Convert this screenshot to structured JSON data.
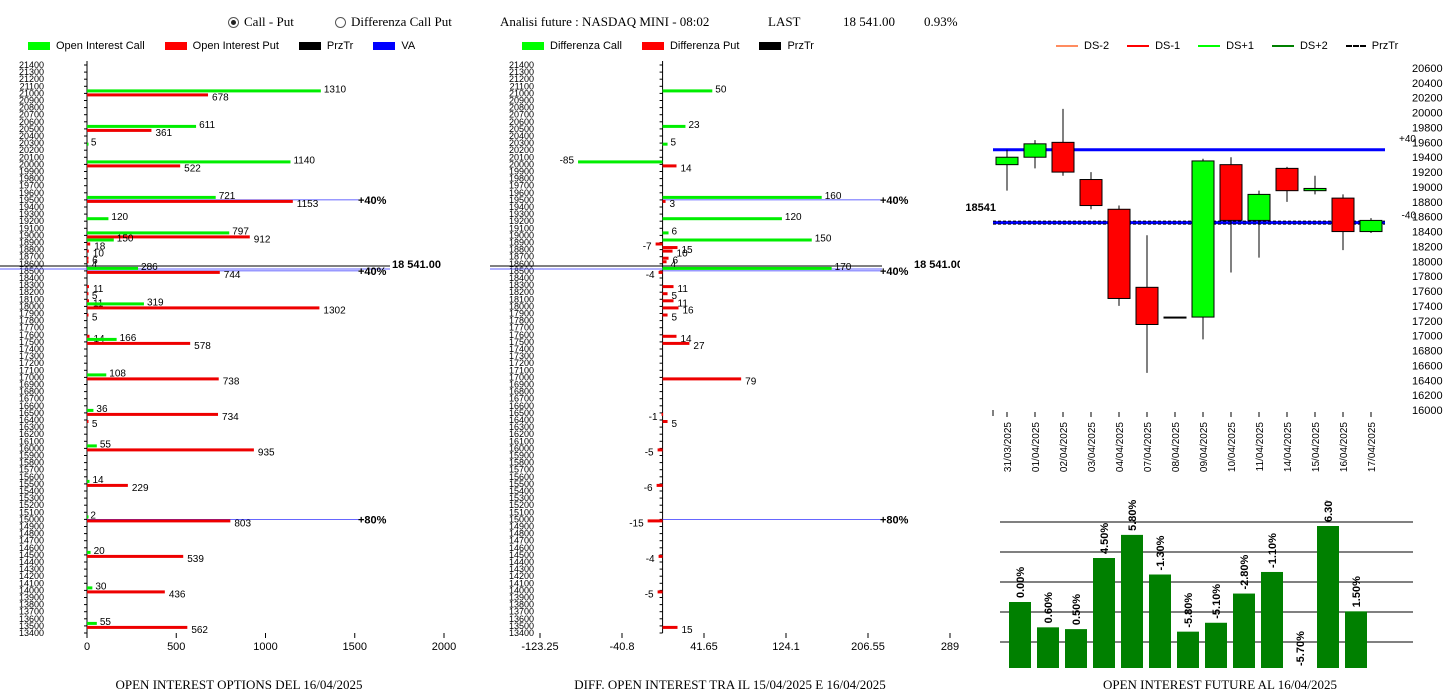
{
  "header": {
    "mode_options": [
      "Call - Put",
      "Differenza Call Put"
    ],
    "mode_selected": 0,
    "title": "Analisi future : NASDAQ MINI - 08:02",
    "last_label": "LAST",
    "last_value": "18 541.00",
    "change": "0.93%"
  },
  "legend1": [
    {
      "label": "Open Interest Call",
      "color": "#00ff00"
    },
    {
      "label": "Open Interest Put",
      "color": "#ff0000"
    },
    {
      "label": "PrzTr",
      "color": "#000000"
    },
    {
      "label": "VA",
      "color": "#0000ff"
    }
  ],
  "legend2": [
    {
      "label": "Differenza Call",
      "color": "#00ff00"
    },
    {
      "label": "Differenza Put",
      "color": "#ff0000"
    },
    {
      "label": "PrzTr",
      "color": "#000000"
    }
  ],
  "legend3": [
    {
      "label": "DS-2",
      "color": "#ff8c60",
      "style": "solid"
    },
    {
      "label": "DS-1",
      "color": "#ff0000",
      "style": "solid"
    },
    {
      "label": "DS+1",
      "color": "#00ff00",
      "style": "solid"
    },
    {
      "label": "DS+2",
      "color": "#008000",
      "style": "solid"
    },
    {
      "label": "PrzTr",
      "color": "#000000",
      "style": "dashed"
    }
  ],
  "captions": {
    "chart1": "OPEN INTEREST OPTIONS DEL 16/04/2025",
    "chart2": "DIFF. OPEN INTEREST TRA IL 15/04/2025 E 16/04/2025",
    "chart3": "OPEN INTEREST FUTURE AL 16/04/2025"
  },
  "chart_data": [
    {
      "type": "bar",
      "orientation": "horizontal",
      "y_range": [
        13400,
        21400
      ],
      "y_step": 100,
      "x_ticks": [
        "0",
        "500",
        "1000",
        "1500",
        "2000"
      ],
      "xlim": [
        0,
        2000
      ],
      "series": [
        {
          "name": "Open Interest Call",
          "color": "#00ff00"
        },
        {
          "name": "Open Interest Put",
          "color": "#ff0000"
        }
      ],
      "rows": [
        {
          "strike": 21000,
          "call": 1310,
          "put": 678,
          "call_label": "1310",
          "put_label": "678"
        },
        {
          "strike": 20500,
          "call": 611,
          "put": 361,
          "call_label": "611",
          "put_label": "361"
        },
        {
          "strike": 20250,
          "call": 5,
          "call_label": "5"
        },
        {
          "strike": 20000,
          "call": 1140,
          "put": 522,
          "call_label": "1140",
          "put_label": "522"
        },
        {
          "strike": 19500,
          "call": 721,
          "put": 1153,
          "call_label": "721",
          "put_label": "1153"
        },
        {
          "strike": 19200,
          "call": 120,
          "call_label": "120"
        },
        {
          "strike": 19000,
          "call": 797,
          "put": 912,
          "call_label": "797",
          "put_label": "912"
        },
        {
          "strike": 18900,
          "call": 150,
          "put": 18,
          "call_label": "150",
          "put_label": "18"
        },
        {
          "strike": 18800,
          "put": 10,
          "put_label": "10"
        },
        {
          "strike": 18700,
          "put": 6,
          "put_label": "6"
        },
        {
          "strike": 18650,
          "put": 4,
          "put_label": "4"
        },
        {
          "strike": 18500,
          "call": 286,
          "put": 744,
          "call_label": "286",
          "put_label": "744"
        },
        {
          "strike": 18300,
          "put": 11,
          "put_label": "11"
        },
        {
          "strike": 18200,
          "put": 5,
          "put_label": "5"
        },
        {
          "strike": 18100,
          "put": 11,
          "put_label": "11"
        },
        {
          "strike": 18000,
          "call": 319,
          "put": 1302,
          "call_label": "319",
          "put_label": "1302"
        },
        {
          "strike": 17900,
          "put": 5,
          "put_label": "5"
        },
        {
          "strike": 17600,
          "put": 14,
          "put_label": "14"
        },
        {
          "strike": 17500,
          "call": 166,
          "put": 578,
          "call_label": "166",
          "put_label": "578"
        },
        {
          "strike": 17000,
          "call": 108,
          "put": 738,
          "call_label": "108",
          "put_label": "738"
        },
        {
          "strike": 16500,
          "call": 36,
          "put": 734,
          "call_label": "36",
          "put_label": "734"
        },
        {
          "strike": 16400,
          "put": 5,
          "put_label": "5"
        },
        {
          "strike": 16000,
          "call": 55,
          "put": 935,
          "call_label": "55",
          "put_label": "935"
        },
        {
          "strike": 15500,
          "call": 14,
          "put": 229,
          "call_label": "14",
          "put_label": "229"
        },
        {
          "strike": 15000,
          "call": 2,
          "put": 803,
          "call_label": "2",
          "put_label": "803"
        },
        {
          "strike": 14500,
          "call": 20,
          "put": 539,
          "call_label": "20",
          "put_label": "539"
        },
        {
          "strike": 14000,
          "call": 30,
          "put": 436,
          "call_label": "30",
          "put_label": "436"
        },
        {
          "strike": 13500,
          "call": 55,
          "put": 562,
          "call_label": "55",
          "put_label": "562"
        }
      ],
      "annotations": [
        {
          "y": 19500,
          "text": "40%"
        },
        {
          "y": 18500,
          "text": "40%"
        },
        {
          "y": 15000,
          "text": "80%"
        }
      ],
      "price_line": {
        "y": 18541,
        "label": "18 541.00"
      }
    },
    {
      "type": "bar",
      "orientation": "horizontal",
      "y_range": [
        13400,
        21400
      ],
      "y_step": 100,
      "x_ticks": [
        "-123.25",
        "-40.8",
        "41.65",
        "124.1",
        "206.55",
        "289"
      ],
      "xlim": [
        -123.25,
        289
      ],
      "series": [
        {
          "name": "Differenza Call",
          "color": "#00ff00"
        },
        {
          "name": "Differenza Put",
          "color": "#ff0000"
        }
      ],
      "rows": [
        {
          "strike": 21000,
          "call": 50,
          "call_label": "50"
        },
        {
          "strike": 20500,
          "call": 23,
          "call_label": "23"
        },
        {
          "strike": 20250,
          "call": 5,
          "call_label": "5"
        },
        {
          "strike": 20000,
          "call": -85,
          "put": 14,
          "call_label": "-85",
          "put_label": "14"
        },
        {
          "strike": 19500,
          "call": 160,
          "put": 3,
          "call_label": "160",
          "put_label": "3"
        },
        {
          "strike": 19200,
          "call": 120,
          "call_label": "120"
        },
        {
          "strike": 19000,
          "call": 6,
          "call_label": "6"
        },
        {
          "strike": 18900,
          "call": 150,
          "put": -7,
          "call_label": "150",
          "put_label": "-7"
        },
        {
          "strike": 18850,
          "put": 15,
          "put_label": "15"
        },
        {
          "strike": 18800,
          "put": 10,
          "put_label": "10"
        },
        {
          "strike": 18700,
          "put": 6,
          "put_label": "6"
        },
        {
          "strike": 18650,
          "put": 4,
          "put_label": "4"
        },
        {
          "strike": 18500,
          "call": 170,
          "put": -4,
          "call_label": "170",
          "put_label": "-4"
        },
        {
          "strike": 18300,
          "put": 11,
          "put_label": "11"
        },
        {
          "strike": 18200,
          "put": 5,
          "put_label": "5"
        },
        {
          "strike": 18100,
          "put": 11,
          "put_label": "11"
        },
        {
          "strike": 18000,
          "put": 16,
          "put_label": "16"
        },
        {
          "strike": 17900,
          "put": 5,
          "put_label": "5"
        },
        {
          "strike": 17600,
          "put": 14,
          "put_label": "14"
        },
        {
          "strike": 17500,
          "put": 27,
          "put_label": "27"
        },
        {
          "strike": 17000,
          "put": 79,
          "put_label": "79"
        },
        {
          "strike": 16500,
          "put": -1,
          "put_label": "-1"
        },
        {
          "strike": 16400,
          "put": 5,
          "put_label": "5"
        },
        {
          "strike": 16000,
          "put": -5,
          "put_label": "-5"
        },
        {
          "strike": 15500,
          "put": -6,
          "put_label": "-6"
        },
        {
          "strike": 15000,
          "put": -15,
          "put_label": "-15"
        },
        {
          "strike": 14500,
          "put": -4,
          "put_label": "-4"
        },
        {
          "strike": 14000,
          "put": -5,
          "put_label": "-5"
        },
        {
          "strike": 13500,
          "put": 15,
          "put_label": "15"
        }
      ],
      "annotations": [
        {
          "y": 19500,
          "text": "40%"
        },
        {
          "y": 18500,
          "text": "40%"
        },
        {
          "y": 15000,
          "text": "80%"
        }
      ],
      "price_line": {
        "y": 18541,
        "label": "18 541.00"
      }
    },
    {
      "type": "candlestick",
      "ylim": [
        16000,
        20600
      ],
      "y_step": 200,
      "dates": [
        "31/03/2025",
        "01/04/2025",
        "02/04/2025",
        "03/04/2025",
        "04/04/2025",
        "07/04/2025",
        "08/04/2025",
        "09/04/2025",
        "10/04/2025",
        "11/04/2025",
        "14/04/2025",
        "15/04/2025",
        "16/04/2025",
        "17/04/2025"
      ],
      "candles": [
        {
          "open": 19300,
          "close": 19400,
          "high": 19500,
          "low": 18950
        },
        {
          "open": 19400,
          "close": 19580,
          "high": 19630,
          "low": 19250
        },
        {
          "open": 19600,
          "close": 19200,
          "high": 20050,
          "low": 19150
        },
        {
          "open": 19100,
          "close": 18750,
          "high": 19200,
          "low": 18700
        },
        {
          "open": 18700,
          "close": 17500,
          "high": 18750,
          "low": 17400
        },
        {
          "open": 17650,
          "close": 17150,
          "high": 18350,
          "low": 16500
        },
        {
          "open": 17250,
          "close": 17250,
          "high": 17250,
          "low": 17250
        },
        {
          "open": 17250,
          "close": 19350,
          "high": 19380,
          "low": 16950
        },
        {
          "open": 19300,
          "close": 18550,
          "high": 19400,
          "low": 17850
        },
        {
          "open": 18550,
          "close": 18900,
          "high": 18950,
          "low": 18050
        },
        {
          "open": 19250,
          "close": 18950,
          "high": 19270,
          "low": 18800
        },
        {
          "open": 18950,
          "close": 18980,
          "high": 19150,
          "low": 18900
        },
        {
          "open": 18850,
          "close": 18400,
          "high": 18900,
          "low": 18150
        },
        {
          "open": 18400,
          "close": 18550,
          "high": 18580,
          "low": 18380
        }
      ],
      "lines": [
        {
          "name": "+40",
          "y": 19500,
          "color": "#0000ff"
        },
        {
          "name": "-40",
          "y": 18520,
          "color": "#0000ff"
        }
      ],
      "price_line": {
        "y": 18541,
        "label": "18541"
      }
    },
    {
      "type": "bar",
      "values": [
        0.0,
        0.6,
        0.5,
        4.5,
        5.8,
        -1.3,
        -5.8,
        -5.1,
        -2.8,
        -1.1,
        -5.7,
        6.3,
        1.5
      ],
      "labels": [
        "0.00%",
        "0.60%",
        "0.50%",
        "4.50%",
        "5.80%",
        "-1.30%",
        "-5.80%",
        "-5.10%",
        "-2.80%",
        "-1.10%",
        "-5.70%",
        "6.30%",
        "1.50%"
      ],
      "color": "#008000"
    }
  ]
}
